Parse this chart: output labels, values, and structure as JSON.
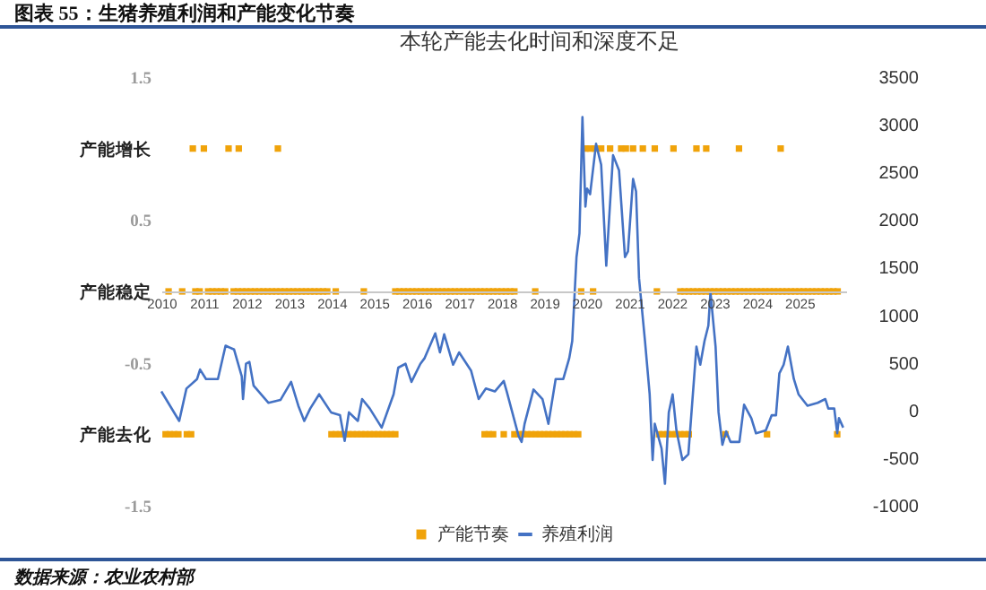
{
  "chart_data": {
    "type": "line",
    "title": "图表 55：生猪养殖利润和产能变化节奏",
    "subtitle": "本轮产能去化时间和深度不足",
    "xlim": [
      2010,
      2026.1
    ],
    "xticks": [
      2010,
      2011,
      2012,
      2013,
      2014,
      2015,
      2016,
      2017,
      2018,
      2019,
      2020,
      2021,
      2022,
      2023,
      2024,
      2025
    ],
    "ylim": [
      -1.5,
      1.5
    ],
    "yticks": [
      1.5,
      {
        "value": 1,
        "label": "产能增长"
      },
      0.5,
      {
        "value": 0,
        "label": "产能稳定"
      },
      -0.5,
      {
        "value": -1,
        "label": "产能去化"
      },
      -1.5
    ],
    "y2lim": [
      -1000,
      3500
    ],
    "y2ticks": [
      -1000,
      -500,
      0,
      500,
      1000,
      1500,
      2000,
      2500,
      3000,
      3500
    ],
    "legend": "bottom",
    "grid": false,
    "series": [
      {
        "name": "产能节奏",
        "type": "scatter",
        "marker": "square",
        "color": "#f0a30a",
        "x": [
          2010.74,
          2011.0,
          2011.58,
          2011.82,
          2012.74,
          2019.97,
          2020.08,
          2020.2,
          2020.34,
          2020.55,
          2020.81,
          2020.92,
          2021.09,
          2021.32,
          2021.6,
          2022.04,
          2022.58,
          2022.81,
          2023.58,
          2024.56,
          2010.17,
          2010.49,
          2010.8,
          2010.9,
          2011.1,
          2011.2,
          2011.3,
          2011.4,
          2011.5,
          2011.7,
          2011.8,
          2011.9,
          2012.0,
          2012.1,
          2012.2,
          2012.3,
          2012.4,
          2012.5,
          2012.6,
          2012.7,
          2012.8,
          2012.9,
          2013.0,
          2013.1,
          2013.2,
          2013.3,
          2013.4,
          2013.5,
          2013.6,
          2013.7,
          2013.8,
          2013.9,
          2014.1,
          2014.76,
          2015.5,
          2015.6,
          2015.7,
          2015.8,
          2015.9,
          2016.0,
          2016.1,
          2016.2,
          2016.3,
          2016.4,
          2016.5,
          2016.6,
          2016.7,
          2016.8,
          2016.9,
          2017.0,
          2017.1,
          2017.2,
          2017.3,
          2017.4,
          2017.5,
          2017.6,
          2017.7,
          2017.8,
          2017.9,
          2018.0,
          2018.1,
          2018.2,
          2018.3,
          2018.79,
          2019.87,
          2020.15,
          2021.65,
          2022.2,
          2022.3,
          2022.4,
          2022.5,
          2022.6,
          2022.7,
          2022.8,
          2022.9,
          2023.0,
          2023.1,
          2023.2,
          2023.3,
          2023.4,
          2023.5,
          2023.6,
          2023.7,
          2023.8,
          2023.9,
          2024.0,
          2024.1,
          2024.2,
          2024.3,
          2024.4,
          2024.5,
          2024.6,
          2024.7,
          2024.8,
          2024.9,
          2025.0,
          2025.1,
          2025.2,
          2025.3,
          2025.4,
          2025.5,
          2025.6,
          2025.7,
          2025.8,
          2025.9,
          2010.1,
          2010.2,
          2010.3,
          2010.4,
          2010.6,
          2010.7,
          2014.0,
          2014.1,
          2014.2,
          2014.3,
          2014.4,
          2014.5,
          2014.6,
          2014.7,
          2014.8,
          2014.9,
          2015.0,
          2015.1,
          2015.2,
          2015.3,
          2015.4,
          2015.5,
          2017.6,
          2017.7,
          2017.8,
          2018.05,
          2018.3,
          2018.4,
          2018.5,
          2018.6,
          2018.7,
          2018.8,
          2018.9,
          2019.0,
          2019.1,
          2019.2,
          2019.3,
          2019.4,
          2019.5,
          2019.6,
          2019.7,
          2019.8,
          2021.7,
          2021.8,
          2021.9,
          2022.0,
          2022.1,
          2022.2,
          2022.3,
          2022.4,
          2023.26,
          2024.24,
          2025.89
        ],
        "values": [
          1,
          1,
          1,
          1,
          1,
          1,
          1,
          1,
          1,
          1,
          1,
          1,
          1,
          1,
          1,
          1,
          1,
          1,
          1,
          1,
          0,
          0,
          0,
          0,
          0,
          0,
          0,
          0,
          0,
          0,
          0,
          0,
          0,
          0,
          0,
          0,
          0,
          0,
          0,
          0,
          0,
          0,
          0,
          0,
          0,
          0,
          0,
          0,
          0,
          0,
          0,
          0,
          0,
          0,
          0,
          0,
          0,
          0,
          0,
          0,
          0,
          0,
          0,
          0,
          0,
          0,
          0,
          0,
          0,
          0,
          0,
          0,
          0,
          0,
          0,
          0,
          0,
          0,
          0,
          0,
          0,
          0,
          0,
          0,
          0,
          0,
          0,
          0,
          0,
          0,
          0,
          0,
          0,
          0,
          0,
          0,
          0,
          0,
          0,
          0,
          0,
          0,
          0,
          0,
          0,
          0,
          0,
          0,
          0,
          0,
          0,
          0,
          0,
          0,
          0,
          0,
          0,
          0,
          0,
          0,
          0,
          0,
          0,
          0,
          0,
          -1,
          -1,
          -1,
          -1,
          -1,
          -1,
          -1,
          -1,
          -1,
          -1,
          -1,
          -1,
          -1,
          -1,
          -1,
          -1,
          -1,
          -1,
          -1,
          -1,
          -1,
          -1,
          -1,
          -1,
          -1,
          -1,
          -1,
          -1,
          -1,
          -1,
          -1,
          -1,
          -1,
          -1,
          -1,
          -1,
          -1,
          -1,
          -1,
          -1,
          -1,
          -1,
          -1,
          -1,
          -1,
          -1,
          -1,
          -1,
          -1,
          -1,
          -1,
          -1,
          -1
        ]
      },
      {
        "name": "养殖利润",
        "axis": "y2",
        "color": "#4472c4",
        "x": [
          2010.0,
          2010.42,
          2010.59,
          2010.84,
          2010.91,
          2011.05,
          2011.33,
          2011.51,
          2011.71,
          2011.89,
          2011.92,
          2011.99,
          2012.07,
          2012.17,
          2012.52,
          2012.8,
          2013.05,
          2013.22,
          2013.36,
          2013.5,
          2013.71,
          2013.99,
          2014.2,
          2014.31,
          2014.41,
          2014.62,
          2014.72,
          2014.9,
          2015.18,
          2015.46,
          2015.57,
          2015.74,
          2015.88,
          2016.09,
          2016.19,
          2016.44,
          2016.55,
          2016.65,
          2016.86,
          2017.0,
          2017.28,
          2017.46,
          2017.63,
          2017.84,
          2018.05,
          2018.12,
          2018.4,
          2018.47,
          2018.54,
          2018.75,
          2018.96,
          2019.1,
          2019.27,
          2019.45,
          2019.59,
          2019.66,
          2019.76,
          2019.83,
          2019.9,
          2019.97,
          2020.01,
          2020.08,
          2020.22,
          2020.34,
          2020.46,
          2020.55,
          2020.62,
          2020.76,
          2020.9,
          2020.97,
          2021.09,
          2021.16,
          2021.23,
          2021.37,
          2021.48,
          2021.55,
          2021.6,
          2021.76,
          2021.84,
          2021.93,
          2022.02,
          2022.11,
          2022.25,
          2022.39,
          2022.58,
          2022.67,
          2022.77,
          2022.86,
          2022.91,
          2023.03,
          2023.1,
          2023.19,
          2023.28,
          2023.38,
          2023.59,
          2023.7,
          2023.87,
          2023.98,
          2024.21,
          2024.35,
          2024.45,
          2024.53,
          2024.63,
          2024.73,
          2024.87,
          2024.98,
          2025.19,
          2025.43,
          2025.61,
          2025.68,
          2025.82,
          2025.89,
          2025.93,
          2026.03
        ],
        "values": [
          200,
          -110,
          230,
          330,
          430,
          330,
          330,
          680,
          640,
          360,
          120,
          490,
          510,
          260,
          80,
          110,
          300,
          50,
          -110,
          20,
          170,
          -20,
          -50,
          -320,
          -20,
          -110,
          120,
          20,
          -180,
          170,
          450,
          490,
          300,
          490,
          550,
          810,
          610,
          800,
          480,
          610,
          420,
          120,
          230,
          200,
          310,
          200,
          -270,
          -330,
          -140,
          220,
          120,
          -140,
          330,
          330,
          550,
          730,
          1610,
          1860,
          3080,
          2140,
          2330,
          2270,
          2800,
          2580,
          1520,
          2180,
          2680,
          2520,
          1610,
          1670,
          2430,
          2300,
          1390,
          730,
          170,
          -520,
          -140,
          -400,
          -770,
          -20,
          170,
          -210,
          -520,
          -460,
          670,
          480,
          730,
          890,
          1240,
          670,
          -20,
          -360,
          -220,
          -330,
          -330,
          60,
          -80,
          -240,
          -210,
          -50,
          -50,
          390,
          480,
          670,
          330,
          170,
          50,
          80,
          120,
          20,
          20,
          -240,
          -80,
          -180
        ]
      }
    ],
    "annotations": [
      "数据来源：农业农村部"
    ]
  }
}
